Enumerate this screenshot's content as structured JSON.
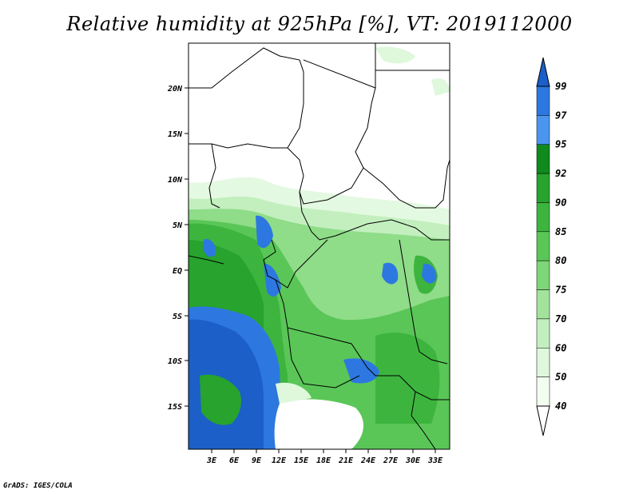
{
  "title": "Relative humidity at 925hPa [%], VT: 2019112000",
  "footer": "GrADS: IGES/COLA",
  "map": {
    "lat_ticks": [
      "20N",
      "15N",
      "10N",
      "5N",
      "EQ",
      "5S",
      "10S",
      "15S"
    ],
    "lon_ticks": [
      "3E",
      "6E",
      "9E",
      "12E",
      "15E",
      "18E",
      "21E",
      "24E",
      "27E",
      "30E",
      "33E"
    ]
  },
  "colorbar": {
    "levels": [
      "99",
      "97",
      "95",
      "92",
      "90",
      "85",
      "80",
      "75",
      "70",
      "60",
      "50",
      "40"
    ],
    "colors": [
      "#1c5fc8",
      "#2d78e0",
      "#4a96ee",
      "#0f8a1c",
      "#27a32e",
      "#3db43e",
      "#5ac657",
      "#7dd677",
      "#a2e39c",
      "#c3efbf",
      "#dff8dc",
      "#f2fff0",
      "#ffffff"
    ]
  }
}
